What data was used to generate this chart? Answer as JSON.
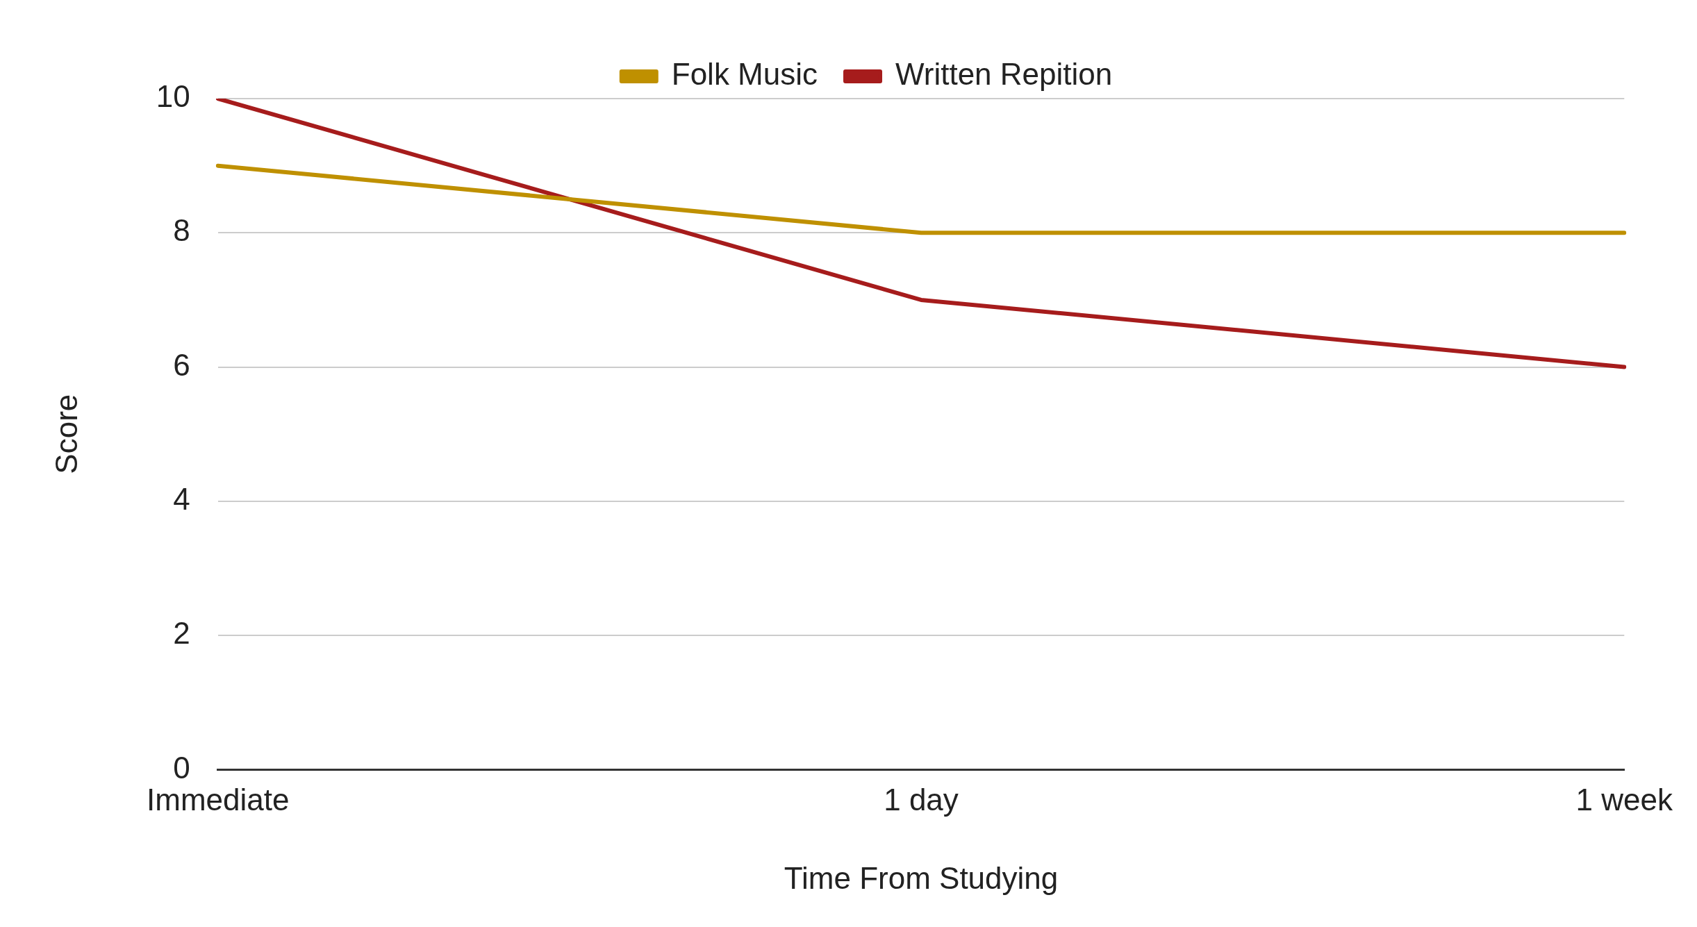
{
  "chart_data": {
    "type": "line",
    "xlabel": "Time From Studying",
    "ylabel": "Score",
    "categories": [
      "Immediate",
      "1 day",
      "1 week"
    ],
    "series": [
      {
        "name": "Folk Music",
        "color": "#bf9000",
        "values": [
          9,
          8,
          8
        ]
      },
      {
        "name": "Written Repition",
        "color": "#a61c1c",
        "values": [
          10,
          7,
          6
        ]
      }
    ],
    "ylim": [
      0,
      10
    ],
    "yticks": [
      0,
      2,
      4,
      6,
      8,
      10
    ],
    "grid": "y",
    "legend": "top",
    "marker": "none",
    "line_style": "solid"
  }
}
